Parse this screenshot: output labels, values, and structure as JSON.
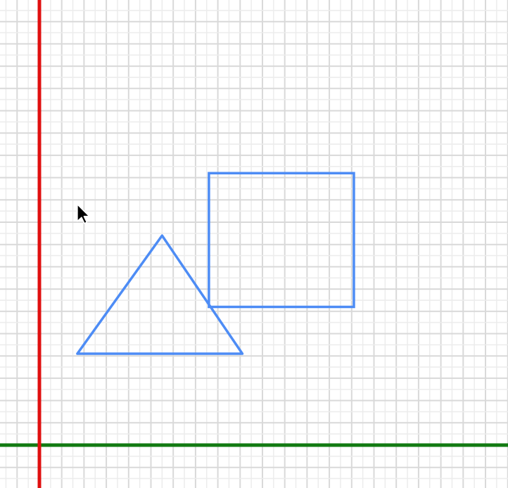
{
  "colors": {
    "background": "#ffffff",
    "grid_minor": "#ececec",
    "grid_major": "#d9d9d9",
    "y_axis": "#e01010",
    "x_axis": "#127a12",
    "shape_stroke": "#4d8cf5",
    "cursor_fill": "#000000",
    "cursor_outline": "#ffffff"
  },
  "icons": {
    "cursor": "arrow-pointer-icon"
  },
  "shapes": {
    "triangle": {
      "type": "triangle",
      "points": [
        [
          5.5,
          9.4
        ],
        [
          1.7,
          4.1
        ],
        [
          9.1,
          4.1
        ]
      ]
    },
    "rectangle": {
      "type": "rectangle",
      "corner_a": [
        7.6,
        12.2
      ],
      "corner_b": [
        14.1,
        6.2
      ]
    }
  },
  "cursor_position": [
    1.7,
    10.8
  ]
}
